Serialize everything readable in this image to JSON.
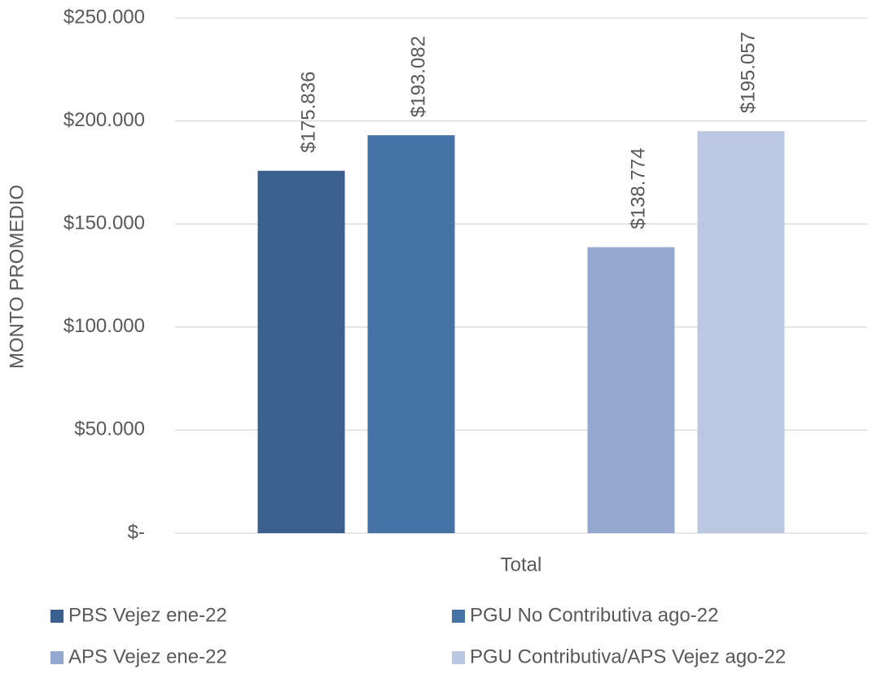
{
  "chart_data": {
    "type": "bar",
    "y_axis_label": "MONTO PROMEDIO",
    "categories": [
      "Total"
    ],
    "series": [
      {
        "name": "PBS Vejez ene-22",
        "color": "#3b5f8e",
        "values": [
          175836
        ],
        "value_labels": [
          "$175.836"
        ]
      },
      {
        "name": "PGU No Contributiva ago-22",
        "color": "#4673a7",
        "values": [
          193082
        ],
        "value_labels": [
          "$193.082"
        ]
      },
      {
        "name": "APS Vejez ene-22",
        "color": "#95a9d0",
        "values": [
          138774
        ],
        "value_labels": [
          "$138.774"
        ]
      },
      {
        "name": "PGU Contributiva/APS Vejez ago-22",
        "color": "#bcc8e2",
        "values": [
          195057
        ],
        "value_labels": [
          "$195.057"
        ]
      }
    ],
    "ylim": [
      0,
      250000
    ],
    "yticks": [
      {
        "value": 0,
        "label": "$-"
      },
      {
        "value": 50000,
        "label": "$50.000"
      },
      {
        "value": 100000,
        "label": "$100.000"
      },
      {
        "value": 150000,
        "label": "$150.000"
      },
      {
        "value": 200000,
        "label": "$200.000"
      },
      {
        "value": 250000,
        "label": "$250.000"
      }
    ],
    "grid": true
  }
}
